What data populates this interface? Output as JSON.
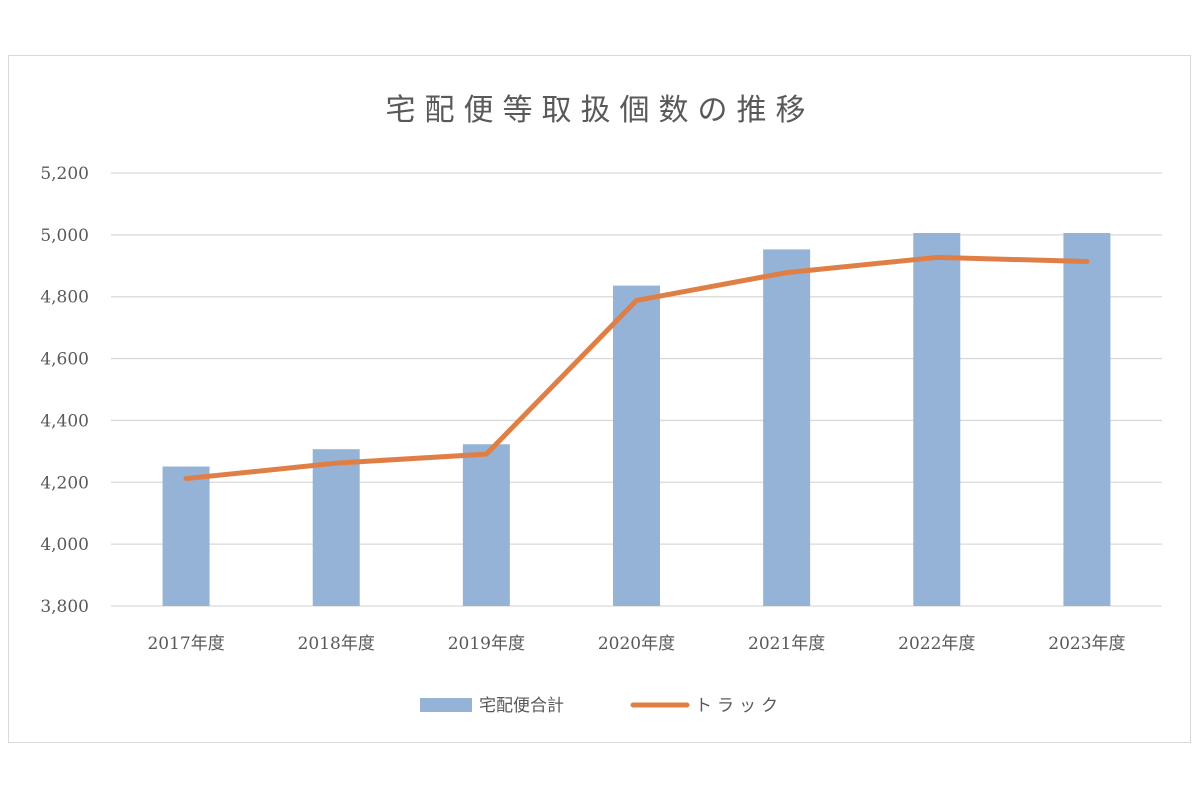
{
  "chart_data": {
    "type": "bar",
    "title": "宅配便等取扱個数の推移",
    "categories": [
      "2017年度",
      "2018年度",
      "2019年度",
      "2020年度",
      "2021年度",
      "2022年度",
      "2023年度"
    ],
    "ylim": [
      3800,
      5200
    ],
    "yticks": [
      3800,
      4000,
      4200,
      4400,
      4600,
      4800,
      5000,
      5200
    ],
    "ytick_labels": [
      "3,800",
      "4,000",
      "4,200",
      "4,400",
      "4,600",
      "4,800",
      "5,000",
      "5,200"
    ],
    "grid": true,
    "legend_position": "bottom",
    "series": [
      {
        "name": "宅配便合計",
        "type": "bar",
        "color": "#95b3d7",
        "values": [
          4251,
          4307,
          4323,
          4836,
          4953,
          5006,
          5006
        ]
      },
      {
        "name": "トラック",
        "type": "line",
        "color": "#e07f45",
        "values": [
          4212,
          4262,
          4291,
          4788,
          4878,
          4927,
          4914
        ]
      }
    ]
  }
}
